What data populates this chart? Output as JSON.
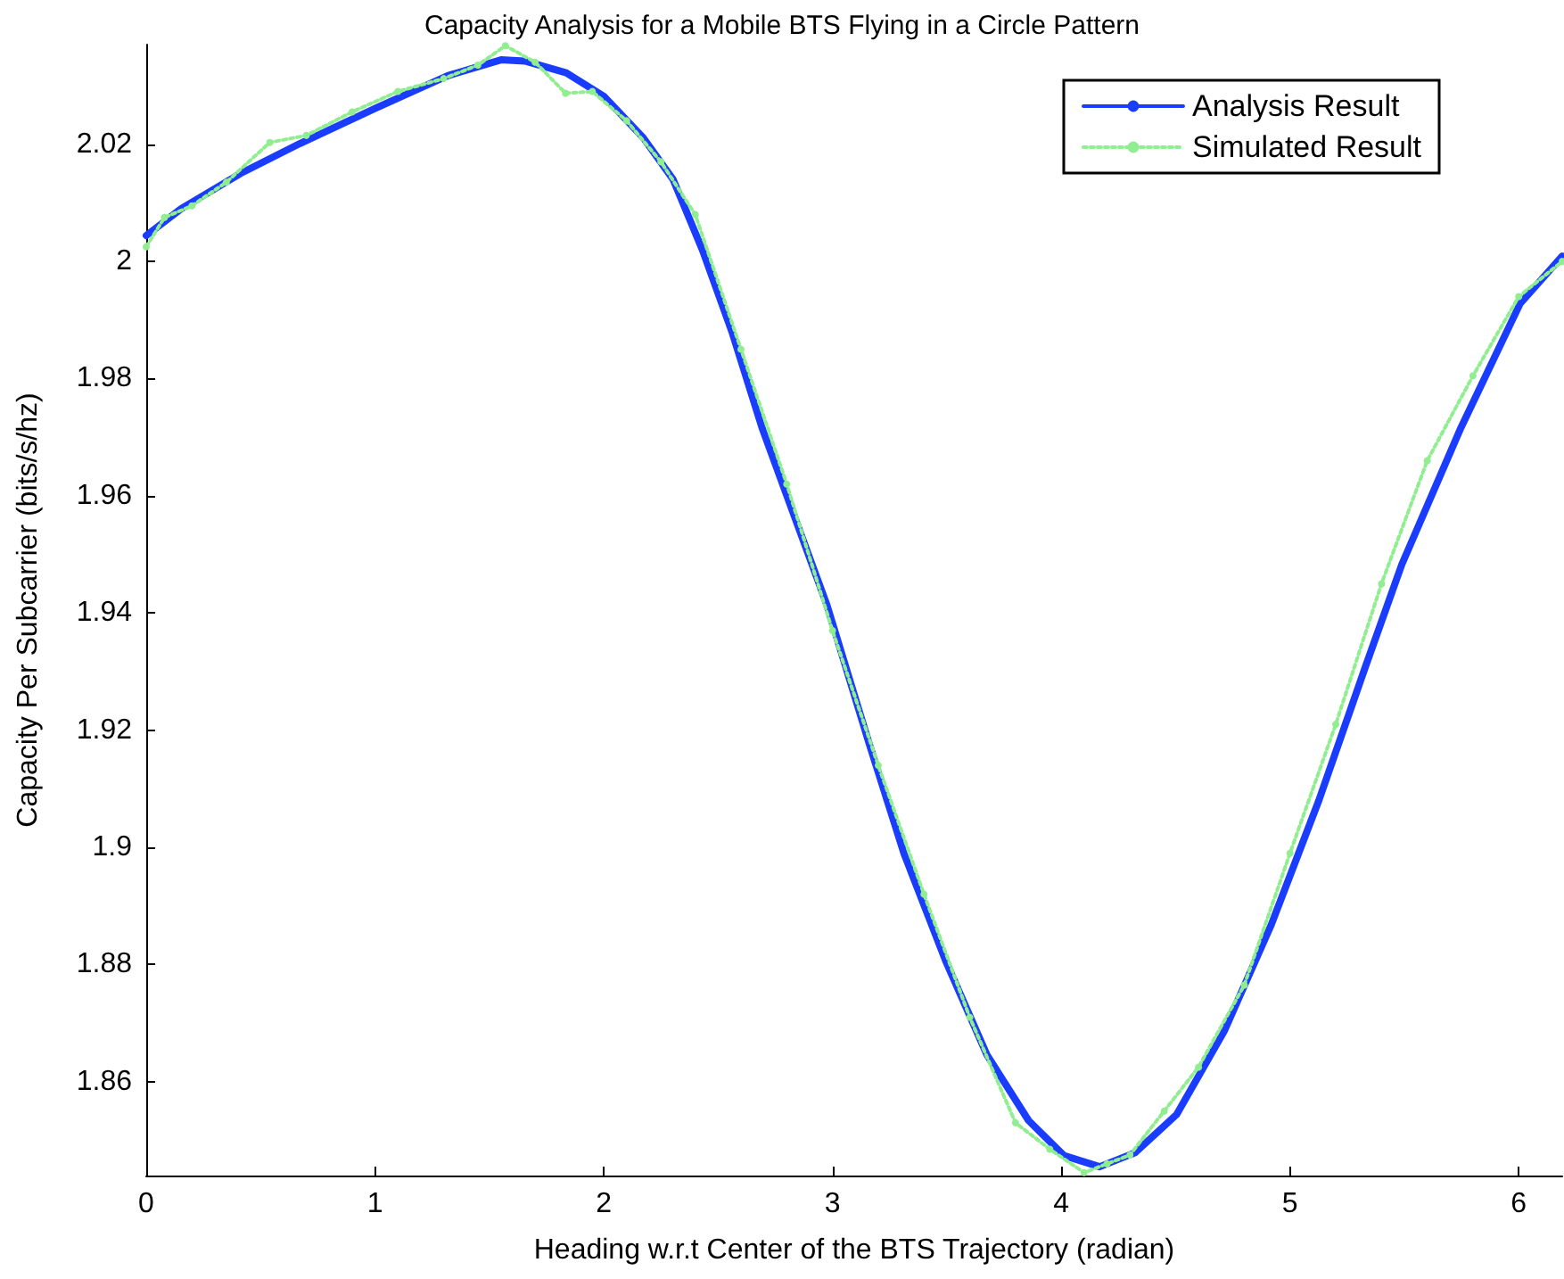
{
  "chart_data": {
    "type": "line",
    "title": "Capacity Analysis for a Mobile BTS Flying in a Circle Pattern",
    "xlabel": "Heading w.r.t Center of the BTS Trajectory (radian)",
    "ylabel": "Capacity Per Subcarrier (bits/s/hz)",
    "xlim": [
      0,
      6.19
    ],
    "xticks": [
      0,
      1,
      2,
      3,
      4,
      5,
      6
    ],
    "ylim": [
      1.844,
      2.037
    ],
    "yticks": [
      1.86,
      1.88,
      1.9,
      1.92,
      1.94,
      1.96,
      1.98,
      2,
      2.02
    ],
    "grid": false,
    "legend": "top right",
    "series": [
      {
        "name": "Analysis Result",
        "color": "#1a3cff",
        "line_style": "solid",
        "marker": "none",
        "x": [
          0,
          0.153,
          0.412,
          0.671,
          1.0,
          1.318,
          1.551,
          1.655,
          1.836,
          2.0,
          2.173,
          2.303,
          2.432,
          2.562,
          2.692,
          2.796,
          2.976,
          3.158,
          3.313,
          3.494,
          3.675,
          3.857,
          4.012,
          4.168,
          4.323,
          4.504,
          4.712,
          4.918,
          5.126,
          5.333,
          5.489,
          5.747,
          6.006,
          6.19
        ],
        "values": [
          2.0044,
          2.009,
          2.015,
          2.0201,
          2.0261,
          2.0317,
          2.0344,
          2.0342,
          2.0322,
          2.0282,
          2.0211,
          2.014,
          2.0019,
          1.9878,
          1.9716,
          1.9605,
          1.9413,
          1.918,
          1.8989,
          1.8807,
          1.8646,
          1.8534,
          1.8474,
          1.8455,
          1.8479,
          1.8544,
          1.8686,
          1.8868,
          1.908,
          1.9312,
          1.9483,
          1.9716,
          1.9928,
          2.0009
        ]
      },
      {
        "name": "Simulated Result",
        "color": "#90ee90",
        "line_style": "dotted",
        "marker": "circle",
        "x": [
          0,
          0.08,
          0.2,
          0.35,
          0.54,
          0.7,
          0.9,
          1.1,
          1.3,
          1.45,
          1.57,
          1.7,
          1.833,
          1.95,
          2.1,
          2.25,
          2.4,
          2.6,
          2.8,
          3.0,
          3.2,
          3.4,
          3.6,
          3.8,
          3.95,
          4.1,
          4.2,
          4.3,
          4.45,
          4.6,
          4.8,
          5.0,
          5.2,
          5.4,
          5.6,
          5.8,
          6.0,
          6.19
        ],
        "values": [
          2.0025,
          2.0075,
          2.0095,
          2.0135,
          2.0203,
          2.0215,
          2.0255,
          2.029,
          2.0312,
          2.0335,
          2.0368,
          2.034,
          2.0287,
          2.029,
          2.024,
          2.017,
          2.008,
          1.985,
          1.962,
          1.937,
          1.914,
          1.892,
          1.871,
          1.853,
          1.8485,
          1.8445,
          1.846,
          1.8475,
          1.855,
          1.8625,
          1.8765,
          1.899,
          1.921,
          1.945,
          1.966,
          1.9805,
          1.994,
          2.0
        ]
      }
    ]
  }
}
